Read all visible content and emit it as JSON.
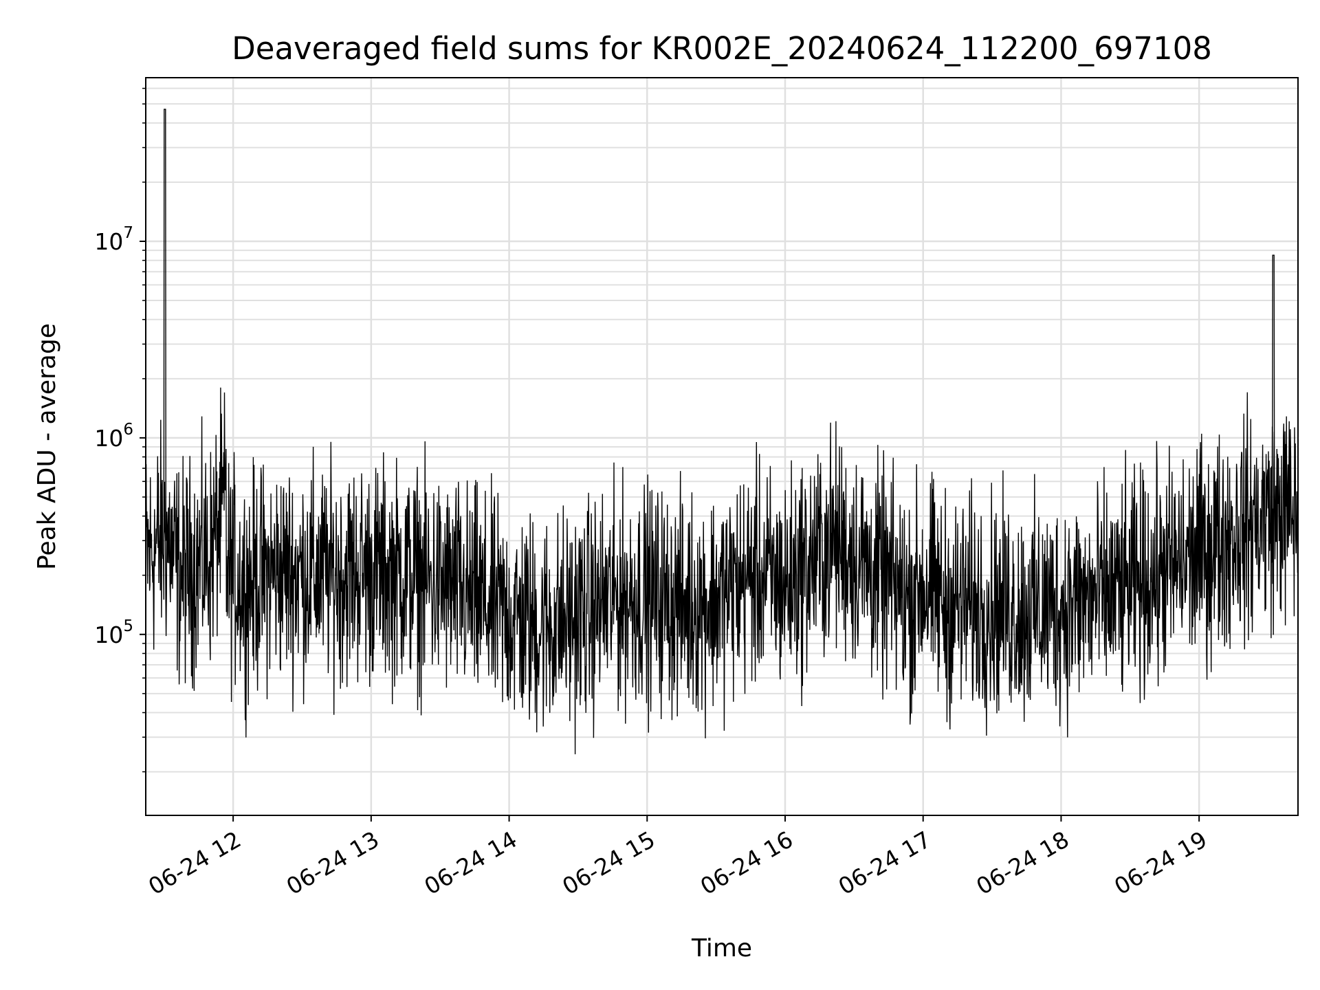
{
  "chart_data": {
    "type": "line",
    "title": "Deaveraged field sums for KR002E_20240624_112200_697108",
    "xlabel": "Time",
    "ylabel": "Peak ADU - average",
    "yscale": "log",
    "xlim": [
      "2024-06-24 11:22",
      "2024-06-24 19:43"
    ],
    "ylim": [
      12000,
      68000000
    ],
    "x_ticks": [
      "06-24 12",
      "06-24 13",
      "06-24 14",
      "06-24 15",
      "06-24 16",
      "06-24 17",
      "06-24 18",
      "06-24 19"
    ],
    "y_ticks": [
      {
        "base": "10",
        "exp": "5",
        "value": 100000
      },
      {
        "base": "10",
        "exp": "6",
        "value": 1000000
      },
      {
        "base": "10",
        "exp": "7",
        "value": 10000000
      }
    ],
    "grid": true,
    "line_color": "#000000",
    "grid_color": "#e0e0e0",
    "series": [
      {
        "x": [
          "2024-06-24 11:22",
          "2024-06-24 11:30",
          "2024-06-24 11:30",
          "2024-06-24 11:31",
          "2024-06-24 11:37",
          "2024-06-24 11:50",
          "2024-06-24 11:57",
          "2024-06-24 11:57",
          "2024-06-24 12:05",
          "2024-06-24 12:20",
          "2024-06-24 12:40",
          "2024-06-24 12:57",
          "2024-06-24 13:15",
          "2024-06-24 13:35",
          "2024-06-24 13:55",
          "2024-06-24 14:13",
          "2024-06-24 14:28",
          "2024-06-24 14:45",
          "2024-06-24 15:00",
          "2024-06-24 15:15",
          "2024-06-24 15:30",
          "2024-06-24 15:45",
          "2024-06-24 16:00",
          "2024-06-24 16:22",
          "2024-06-24 16:40",
          "2024-06-24 16:54",
          "2024-06-24 17:00",
          "2024-06-24 17:10",
          "2024-06-24 17:30",
          "2024-06-24 17:45",
          "2024-06-24 18:00",
          "2024-06-24 18:15",
          "2024-06-24 18:30",
          "2024-06-24 18:45",
          "2024-06-24 19:00",
          "2024-06-24 19:15",
          "2024-06-24 19:30",
          "2024-06-24 19:32",
          "2024-06-24 19:32",
          "2024-06-24 19:43"
        ],
        "values": [
          250000,
          300000,
          47000000,
          300000,
          200000,
          250000,
          500000,
          220000,
          180000,
          210000,
          200000,
          210000,
          200000,
          170000,
          130000,
          110000,
          120000,
          150000,
          160000,
          140000,
          150000,
          200000,
          180000,
          300000,
          200000,
          150000,
          180000,
          140000,
          140000,
          130000,
          140000,
          150000,
          170000,
          210000,
          250000,
          330000,
          400000,
          8500000,
          450000,
          400000
        ]
      }
    ]
  }
}
